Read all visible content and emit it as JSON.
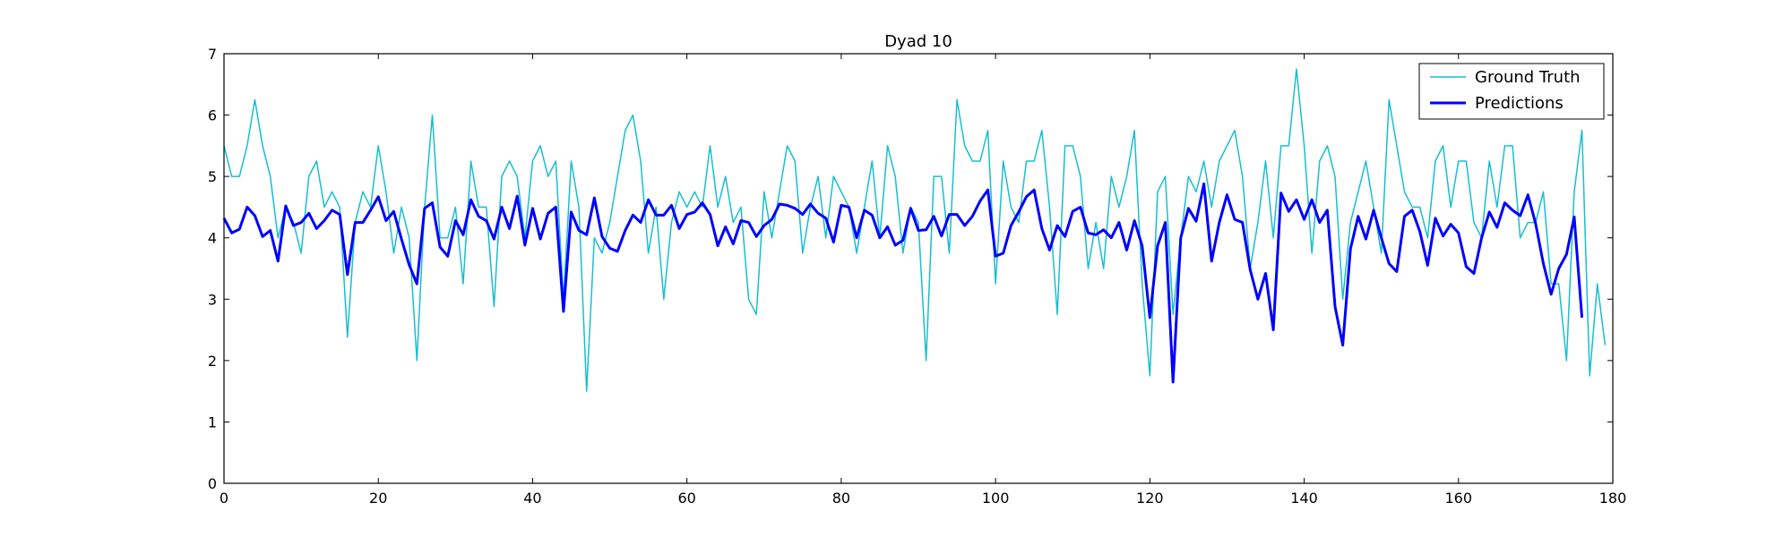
{
  "chart_data": {
    "type": "line",
    "title": "Dyad 10",
    "xlabel": "",
    "ylabel": "",
    "xlim": [
      0,
      180
    ],
    "ylim": [
      0,
      7
    ],
    "x_ticks": [
      0,
      20,
      40,
      60,
      80,
      100,
      120,
      140,
      160,
      180
    ],
    "y_ticks": [
      0,
      1,
      2,
      3,
      4,
      5,
      6,
      7
    ],
    "grid": false,
    "legend_position": "top-right",
    "series": [
      {
        "name": "Ground Truth",
        "color": "#17becf",
        "line_width": 1.5,
        "values": [
          5.5,
          5.0,
          5.0,
          5.5,
          6.25,
          5.5,
          5.0,
          4.0,
          4.5,
          4.25,
          3.75,
          5.0,
          5.25,
          4.5,
          4.75,
          4.5,
          2.38,
          4.25,
          4.75,
          4.5,
          5.5,
          4.75,
          3.75,
          4.5,
          4.0,
          2.0,
          4.5,
          6.0,
          4.0,
          4.0,
          4.5,
          3.25,
          5.25,
          4.5,
          4.5,
          2.88,
          5.0,
          5.25,
          5.0,
          4.0,
          5.25,
          5.5,
          5.0,
          5.25,
          3.0,
          5.25,
          4.5,
          1.5,
          4.0,
          3.75,
          4.25,
          5.0,
          5.75,
          6.0,
          5.25,
          3.75,
          4.5,
          3.0,
          4.25,
          4.75,
          4.5,
          4.75,
          4.5,
          5.5,
          4.5,
          5.0,
          4.25,
          4.5,
          3.0,
          2.75,
          4.75,
          4.0,
          4.75,
          5.5,
          5.25,
          3.75,
          4.5,
          5.0,
          4.0,
          5.0,
          4.75,
          4.5,
          3.75,
          4.5,
          5.25,
          4.0,
          5.5,
          5.0,
          3.75,
          4.5,
          4.25,
          2.0,
          5.0,
          5.0,
          3.75,
          6.25,
          5.5,
          5.25,
          5.25,
          5.75,
          3.25,
          5.25,
          4.5,
          4.25,
          5.25,
          5.25,
          5.75,
          4.5,
          2.75,
          5.5,
          5.5,
          5.0,
          3.5,
          4.25,
          3.5,
          5.0,
          4.5,
          5.0,
          5.75,
          3.25,
          1.75,
          4.75,
          5.0,
          2.75,
          4.0,
          5.0,
          4.75,
          5.25,
          4.5,
          5.25,
          5.5,
          5.75,
          5.0,
          3.5,
          4.25,
          5.25,
          4.0,
          5.5,
          5.5,
          6.75,
          5.5,
          3.75,
          5.25,
          5.5,
          5.0,
          3.0,
          4.25,
          4.75,
          5.25,
          4.5,
          3.75,
          6.25,
          5.5,
          4.75,
          4.5,
          4.5,
          4.0,
          5.25,
          5.5,
          4.5,
          5.25,
          5.25,
          4.25,
          4.0,
          5.25,
          4.5,
          5.5,
          5.5,
          4.0,
          4.25,
          4.25,
          4.75,
          3.25,
          3.25,
          2.0,
          4.75,
          5.75,
          1.75,
          3.25,
          2.25
        ]
      },
      {
        "name": "Predictions",
        "color": "#0000ff",
        "line_width": 3,
        "values": [
          4.32,
          4.08,
          4.14,
          4.5,
          4.36,
          4.02,
          4.12,
          3.62,
          4.52,
          4.2,
          4.25,
          4.4,
          4.15,
          4.28,
          4.45,
          4.38,
          3.4,
          4.25,
          4.25,
          4.45,
          4.67,
          4.28,
          4.43,
          3.98,
          3.56,
          3.25,
          4.48,
          4.57,
          3.85,
          3.7,
          4.28,
          4.05,
          4.62,
          4.35,
          4.28,
          3.98,
          4.5,
          4.15,
          4.68,
          3.88,
          4.48,
          3.98,
          4.4,
          4.5,
          2.8,
          4.42,
          4.12,
          4.05,
          4.65,
          4.02,
          3.83,
          3.78,
          4.12,
          4.37,
          4.25,
          4.62,
          4.37,
          4.37,
          4.53,
          4.15,
          4.38,
          4.42,
          4.57,
          4.38,
          3.87,
          4.18,
          3.9,
          4.28,
          4.25,
          4.02,
          4.2,
          4.3,
          4.55,
          4.53,
          4.48,
          4.38,
          4.55,
          4.4,
          4.32,
          3.93,
          4.53,
          4.5,
          4.0,
          4.45,
          4.37,
          4.0,
          4.18,
          3.88,
          3.96,
          4.48,
          4.12,
          4.13,
          4.35,
          4.03,
          4.38,
          4.38,
          4.2,
          4.35,
          4.6,
          4.78,
          3.7,
          3.75,
          4.2,
          4.42,
          4.67,
          4.78,
          4.15,
          3.8,
          4.2,
          4.02,
          4.43,
          4.5,
          4.08,
          4.05,
          4.13,
          4.0,
          4.25,
          3.8,
          4.28,
          3.87,
          2.7,
          3.87,
          4.25,
          1.65,
          4.0,
          4.48,
          4.27,
          4.88,
          3.62,
          4.25,
          4.7,
          4.3,
          4.25,
          3.48,
          3.0,
          3.42,
          2.5,
          4.73,
          4.43,
          4.62,
          4.3,
          4.62,
          4.25,
          4.45,
          2.88,
          2.25,
          3.82,
          4.35,
          3.98,
          4.45,
          4.0,
          3.58,
          3.45,
          4.35,
          4.45,
          4.1,
          3.55,
          4.32,
          4.03,
          4.22,
          4.08,
          3.53,
          3.42,
          4.0,
          4.42,
          4.17,
          4.57,
          4.45,
          4.36,
          4.7,
          4.23,
          3.58,
          3.08,
          3.5,
          3.73,
          4.34,
          2.7
        ]
      }
    ]
  }
}
